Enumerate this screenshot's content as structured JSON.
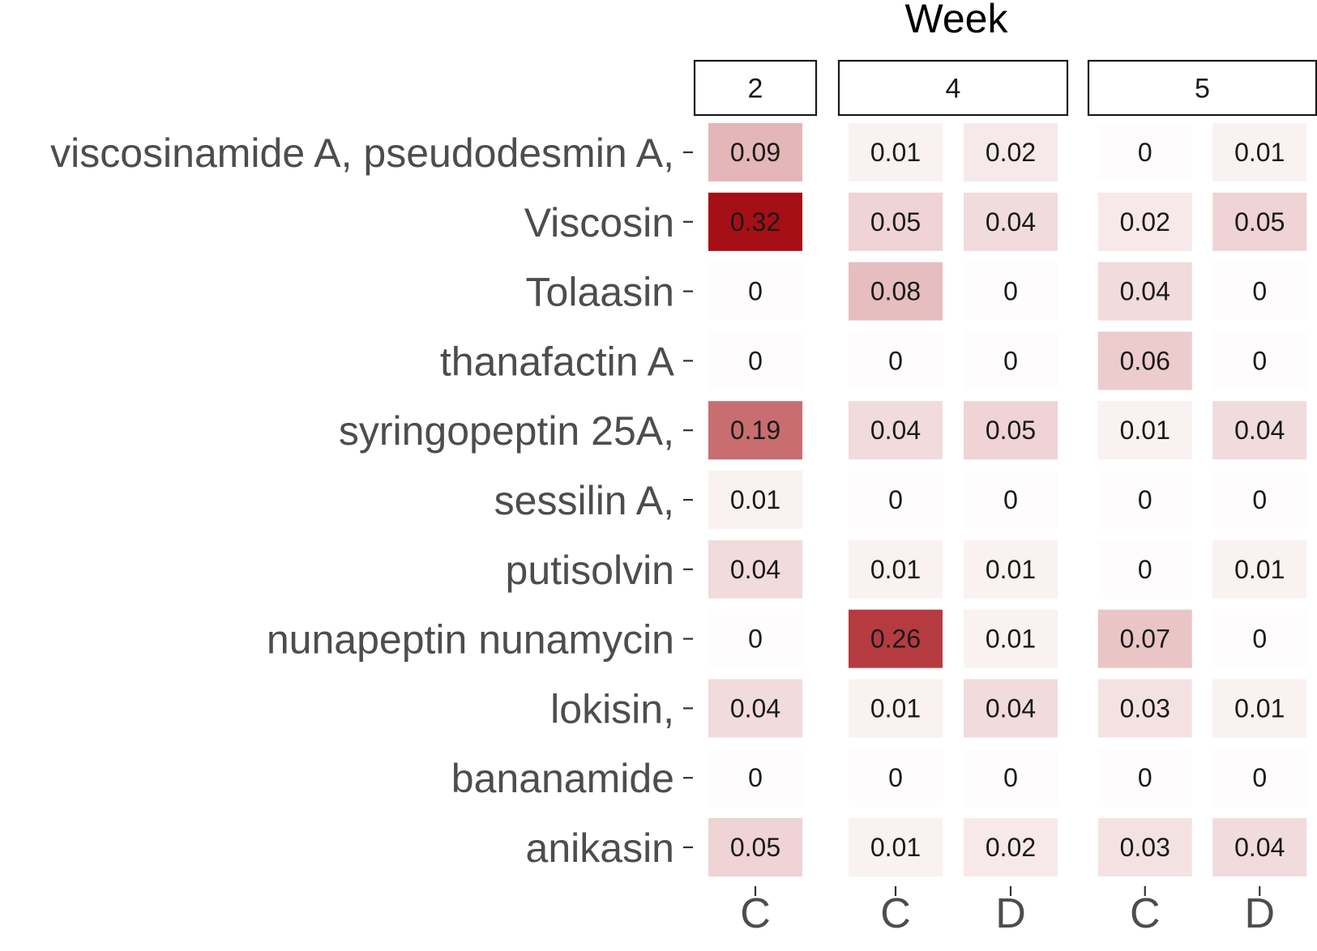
{
  "chart_data": {
    "type": "heatmap",
    "title": "",
    "facet_title": "Week",
    "xlabel": "",
    "ylabel": "",
    "facets": [
      {
        "label": "2",
        "columns": [
          "C"
        ]
      },
      {
        "label": "4",
        "columns": [
          "C",
          "D"
        ]
      },
      {
        "label": "5",
        "columns": [
          "C",
          "D"
        ]
      }
    ],
    "rows": [
      "viscosinamide A, pseudodesmin A,",
      "Viscosin",
      "Tolaasin",
      "thanafactin A",
      "syringopeptin 25A,",
      "sessilin A,",
      "putisolvin",
      "nunapeptin nunamycin",
      "lokisin,",
      "bananamide",
      "anikasin"
    ],
    "values": [
      [
        [
          0.09
        ],
        [
          0.01,
          0.02
        ],
        [
          0,
          0.01
        ]
      ],
      [
        [
          0.32
        ],
        [
          0.05,
          0.04
        ],
        [
          0.02,
          0.05
        ]
      ],
      [
        [
          0
        ],
        [
          0.08,
          0
        ],
        [
          0.04,
          0
        ]
      ],
      [
        [
          0
        ],
        [
          0,
          0
        ],
        [
          0.06,
          0
        ]
      ],
      [
        [
          0.19
        ],
        [
          0.04,
          0.05
        ],
        [
          0.01,
          0.04
        ]
      ],
      [
        [
          0.01
        ],
        [
          0,
          0
        ],
        [
          0,
          0
        ]
      ],
      [
        [
          0.04
        ],
        [
          0.01,
          0.01
        ],
        [
          0,
          0.01
        ]
      ],
      [
        [
          0
        ],
        [
          0.26,
          0.01
        ],
        [
          0.07,
          0
        ]
      ],
      [
        [
          0.04
        ],
        [
          0.01,
          0.04
        ],
        [
          0.03,
          0.01
        ]
      ],
      [
        [
          0
        ],
        [
          0,
          0
        ],
        [
          0,
          0
        ]
      ],
      [
        [
          0.05
        ],
        [
          0.01,
          0.02
        ],
        [
          0.03,
          0.04
        ]
      ]
    ],
    "color_scale": {
      "low": "#ffffff",
      "high": "#a50f15",
      "domain": [
        0,
        0.32
      ]
    },
    "legend": "none",
    "grid": false
  }
}
